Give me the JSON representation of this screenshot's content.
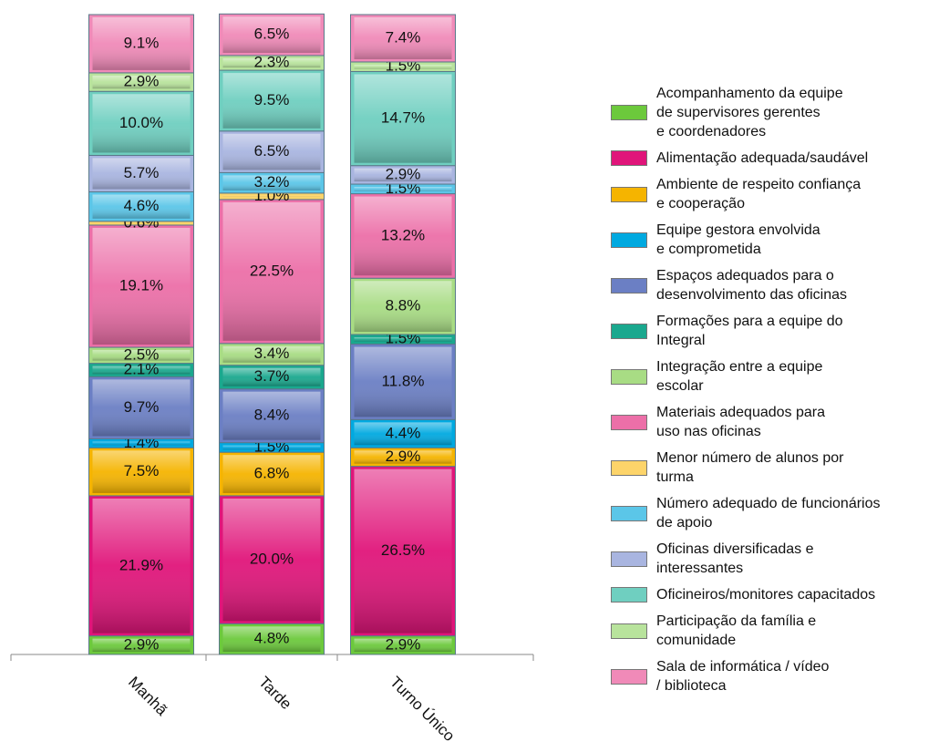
{
  "chart_data": {
    "type": "stacked_bar",
    "categories": [
      "Manhã",
      "Tarde",
      "Turno Único"
    ],
    "ylim": [
      0,
      100
    ],
    "series": [
      {
        "name": "Acompanhamento da equipe\nde supervisores gerentes\ne coordenadores",
        "color": "#6cc93c",
        "values": [
          2.9,
          4.8,
          2.9
        ],
        "value_labels": [
          "2.9%",
          "4.8%",
          "2.9%"
        ]
      },
      {
        "name": "Alimentação adequada/saudável",
        "color": "#e0157a",
        "values": [
          21.9,
          20.0,
          26.5
        ],
        "value_labels": [
          "21.9%",
          "20.0%",
          "26.5%"
        ]
      },
      {
        "name": "Ambiente de respeito confiança\ne cooperação",
        "color": "#f5b400",
        "values": [
          7.5,
          6.8,
          2.9
        ],
        "value_labels": [
          "7.5%",
          "6.8%",
          "2.9%"
        ]
      },
      {
        "name": "Equipe gestora envolvida\ne comprometida",
        "color": "#00a9e0",
        "values": [
          1.4,
          1.5,
          4.4
        ],
        "value_labels": [
          "1.4%",
          "1.5%",
          "4.4%"
        ]
      },
      {
        "name": "Espaços adequados para o\ndesenvolvimento das oficinas",
        "color": "#6b7fc4",
        "values": [
          9.7,
          8.4,
          11.8
        ],
        "value_labels": [
          "9.7%",
          "8.4%",
          "11.8%"
        ]
      },
      {
        "name": "Formações para a equipe do\nIntegral",
        "color": "#1aa88e",
        "values": [
          2.1,
          3.7,
          1.5
        ],
        "value_labels": [
          "2.1%",
          "3.7%",
          "1.5%"
        ]
      },
      {
        "name": "Integração entre a equipe\nescolar",
        "color": "#a8dc84",
        "values": [
          2.5,
          3.4,
          8.8
        ],
        "value_labels": [
          "2.5%",
          "3.4%",
          "8.8%"
        ]
      },
      {
        "name": "Materiais adequados para\nuso nas oficinas",
        "color": "#ec6fa8",
        "values": [
          19.1,
          22.5,
          13.2
        ],
        "value_labels": [
          "19.1%",
          "22.5%",
          "13.2%"
        ]
      },
      {
        "name": "Menor número de alunos por\nturma",
        "color": "#fdd46a",
        "values": [
          0.6,
          1.0,
          null
        ],
        "value_labels": [
          "0.6%",
          "1.0%",
          null
        ]
      },
      {
        "name": "Número adequado de funcionários\nde apoio",
        "color": "#5bc6e8",
        "values": [
          4.6,
          3.2,
          1.5
        ],
        "value_labels": [
          "4.6%",
          "3.2%",
          "1.5%"
        ]
      },
      {
        "name": "Oficinas diversificadas e\ninteressantes",
        "color": "#a9b5e0",
        "values": [
          5.7,
          6.5,
          2.9
        ],
        "value_labels": [
          "5.7%",
          "6.5%",
          "2.9%"
        ]
      },
      {
        "name": "Oficineiros/monitores capacitados",
        "color": "#6fcfc0",
        "values": [
          10.0,
          9.5,
          14.7
        ],
        "value_labels": [
          "10.0%",
          "9.5%",
          "14.7%"
        ]
      },
      {
        "name": "Participação da família e\ncomunidade",
        "color": "#b8e39c",
        "values": [
          2.9,
          2.3,
          1.5
        ],
        "value_labels": [
          "2.9%",
          "2.3%",
          "1.5%"
        ]
      },
      {
        "name": "Sala de informática / vídeo\n/ biblioteca",
        "color": "#f08ab8",
        "values": [
          9.1,
          6.5,
          7.4
        ],
        "value_labels": [
          "9.1%",
          "6.5%",
          "7.4%"
        ]
      }
    ]
  }
}
